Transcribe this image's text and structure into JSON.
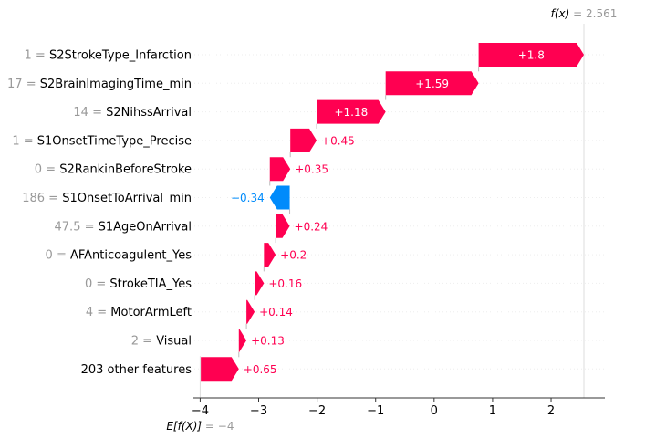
{
  "chart_data": {
    "type": "waterfall",
    "expected_value": -4,
    "expected_label": "E[f(X)] = −4",
    "fx_value": 2.561,
    "fx_label": "f(x) = 2.561",
    "xlim": [
      -4.1,
      2.92
    ],
    "ticks": [
      {
        "value": -4,
        "label": "−4"
      },
      {
        "value": -3,
        "label": "−3"
      },
      {
        "value": -2,
        "label": "−2"
      },
      {
        "value": -1,
        "label": "−1"
      },
      {
        "value": 0,
        "label": "0"
      },
      {
        "value": 1,
        "label": "1"
      },
      {
        "value": 2,
        "label": "2"
      }
    ],
    "colors": {
      "positive": "#ff0051",
      "negative": "#008bfb",
      "grid": "#eeeeee",
      "axis": "#333333"
    },
    "features": [
      {
        "value": "1",
        "name": "S2StrokeType_Infarction",
        "contribution": 1.8,
        "label": "+1.8",
        "start": 0.761,
        "end": 2.561
      },
      {
        "value": "17",
        "name": "S2BrainImagingTime_min",
        "contribution": 1.59,
        "label": "+1.59",
        "start": -0.829,
        "end": 0.761
      },
      {
        "value": "14",
        "name": "S2NihssArrival",
        "contribution": 1.18,
        "label": "+1.18",
        "start": -2.009,
        "end": -0.829
      },
      {
        "value": "1",
        "name": "S1OnsetTimeType_Precise",
        "contribution": 0.45,
        "label": "+0.45",
        "start": -2.459,
        "end": -2.009
      },
      {
        "value": "0",
        "name": "S2RankinBeforeStroke",
        "contribution": 0.35,
        "label": "+0.35",
        "start": -2.809,
        "end": -2.459
      },
      {
        "value": "186",
        "name": "S1OnsetToArrival_min",
        "contribution": -0.34,
        "label": "−0.34",
        "start": -2.469,
        "end": -2.809
      },
      {
        "value": "47.5",
        "name": "S1AgeOnArrival",
        "contribution": 0.24,
        "label": "+0.24",
        "start": -2.709,
        "end": -2.469
      },
      {
        "value": "0",
        "name": "AFAnticoagulent_Yes",
        "contribution": 0.2,
        "label": "+0.2",
        "start": -2.909,
        "end": -2.709
      },
      {
        "value": "0",
        "name": "StrokeTIA_Yes",
        "contribution": 0.16,
        "label": "+0.16",
        "start": -3.069,
        "end": -2.909
      },
      {
        "value": "4",
        "name": "MotorArmLeft",
        "contribution": 0.14,
        "label": "+0.14",
        "start": -3.209,
        "end": -3.069
      },
      {
        "value": "2",
        "name": "Visual",
        "contribution": 0.13,
        "label": "+0.13",
        "start": -3.339,
        "end": -3.209
      },
      {
        "value": "",
        "name": "203 other features",
        "contribution": 0.65,
        "label": "+0.65",
        "start": -3.989,
        "end": -3.339
      }
    ]
  }
}
